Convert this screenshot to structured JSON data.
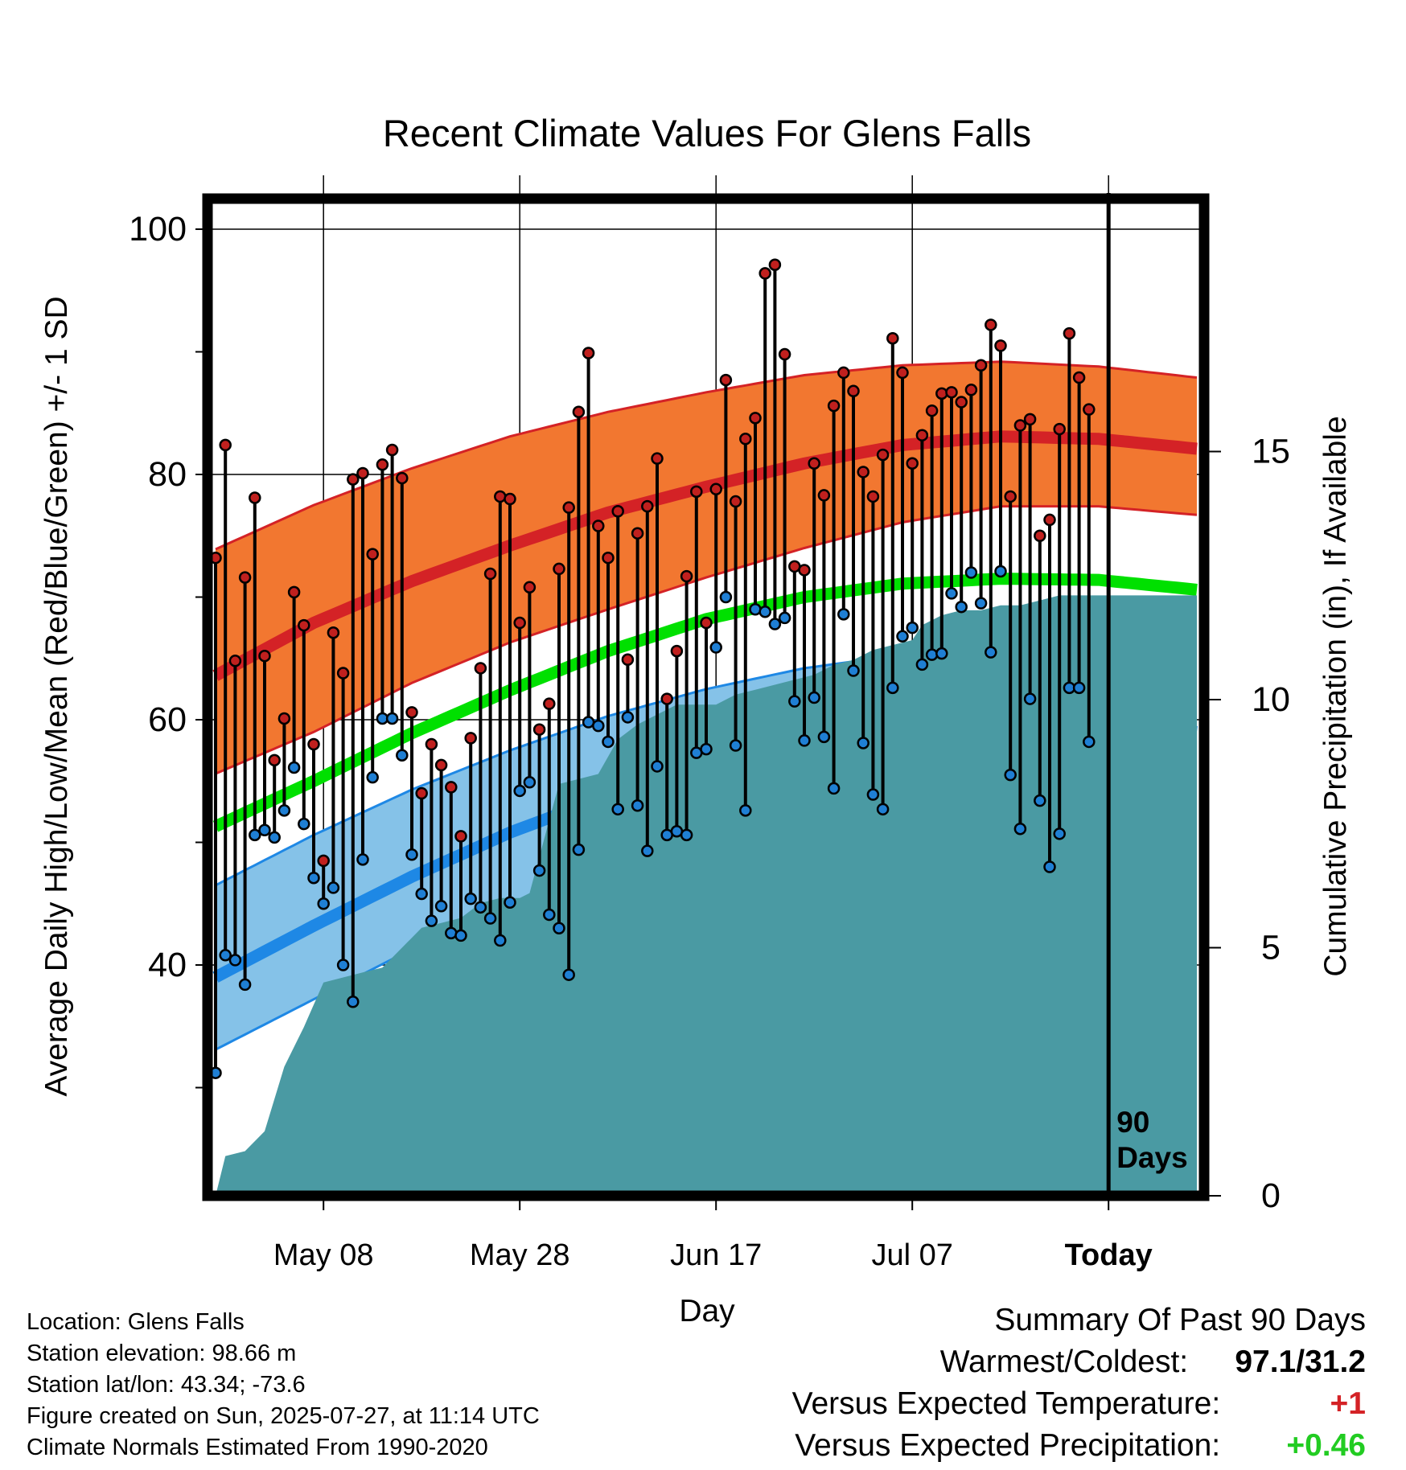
{
  "chart_data": {
    "type": "line",
    "title": "Recent Climate Values For Glens Falls",
    "xlabel": "Day",
    "ylabel": "Average Daily High/Low/Mean (Red/Blue/Green) +/- 1 SD",
    "y2label": "Cumulative Precipitation (in), If Available",
    "x_tick_labels": [
      "May 08",
      "May 28",
      "Jun 17",
      "Jul 07",
      "Today"
    ],
    "x_tick_days": [
      11,
      31,
      51,
      71,
      91
    ],
    "x_range_days": [
      0,
      100
    ],
    "ylim": [
      20,
      102
    ],
    "y_ticks": [
      40,
      60,
      80,
      100
    ],
    "y_minor_ticks": [
      30,
      50,
      70,
      90
    ],
    "y2lim": [
      0,
      19.4
    ],
    "y2_ticks": [
      0,
      5,
      10,
      15
    ],
    "today_marker_label": [
      "90",
      "Days"
    ],
    "grid": true,
    "colors": {
      "high_band": "#f27730",
      "high_mean": "#d42226",
      "low_band": "#85c2e8",
      "low_mean": "#1e88e5",
      "mean": "#00e000",
      "precip": "#4a9aa3",
      "high_dot": "#c0201e",
      "low_dot": "#1f7fd4"
    },
    "normal_days": [
      0,
      10,
      20,
      30,
      40,
      50,
      60,
      70,
      80,
      90,
      100
    ],
    "normal_high_mean": [
      63.6,
      67.9,
      71.3,
      74.2,
      76.9,
      79.0,
      80.9,
      82.4,
      83.1,
      82.9,
      82.1
    ],
    "normal_high_upper": [
      73.9,
      77.5,
      80.5,
      83.1,
      85.1,
      86.7,
      88.1,
      88.9,
      89.2,
      88.8,
      87.9
    ],
    "normal_high_lower": [
      55.6,
      59.0,
      63.0,
      66.3,
      69.0,
      71.6,
      74.0,
      76.1,
      77.4,
      77.4,
      76.7
    ],
    "normal_mean": [
      51.3,
      55.0,
      58.9,
      62.4,
      65.6,
      68.2,
      70.0,
      71.1,
      71.5,
      71.4,
      70.6
    ],
    "normal_low_mean": [
      39.0,
      43.2,
      47.2,
      50.8,
      53.8,
      56.4,
      58.3,
      59.6,
      60.0,
      59.8,
      59.0
    ],
    "normal_low_upper": [
      46.5,
      50.6,
      54.3,
      57.5,
      60.3,
      62.5,
      64.2,
      65.3,
      65.8,
      65.7,
      65.2
    ],
    "normal_low_lower": [
      33.1,
      37.2,
      41.3,
      44.9,
      47.9,
      50.5,
      52.5,
      53.8,
      54.5,
      54.4,
      53.7
    ],
    "observed_days": [
      0,
      1,
      2,
      3,
      4,
      5,
      6,
      7,
      8,
      9,
      10,
      11,
      12,
      13,
      14,
      15,
      16,
      17,
      18,
      19,
      20,
      21,
      22,
      23,
      24,
      25,
      26,
      27,
      28,
      29,
      30,
      31,
      32,
      33,
      34,
      35,
      36,
      37,
      38,
      39,
      40,
      41,
      42,
      43,
      44,
      45,
      46,
      47,
      48,
      49,
      50,
      51,
      52,
      53,
      54,
      55,
      56,
      57,
      58,
      59,
      60,
      61,
      62,
      63,
      64,
      65,
      66,
      67,
      68,
      69,
      70,
      71,
      72,
      73,
      74,
      75,
      76,
      77,
      78,
      79,
      80,
      81,
      82,
      83,
      84,
      85,
      86,
      87,
      88,
      89
    ],
    "daily_high": [
      73.2,
      82.4,
      64.8,
      71.6,
      78.1,
      65.2,
      56.7,
      60.1,
      70.4,
      67.7,
      58.0,
      48.5,
      67.1,
      63.8,
      79.6,
      80.1,
      73.5,
      80.8,
      82.0,
      79.7,
      60.6,
      54.0,
      58.0,
      56.3,
      54.5,
      50.5,
      58.5,
      64.2,
      71.9,
      78.2,
      78.0,
      67.9,
      70.8,
      59.2,
      61.3,
      72.3,
      77.3,
      85.1,
      89.9,
      75.8,
      73.2,
      77.0,
      64.9,
      75.2,
      77.4,
      81.3,
      61.7,
      65.6,
      71.7,
      78.6,
      67.9,
      78.8,
      87.7,
      77.8,
      82.9,
      84.6,
      96.4,
      97.1,
      89.8,
      72.5,
      72.2,
      80.9,
      78.3,
      85.6,
      88.3,
      86.8,
      80.2,
      78.2,
      81.6,
      91.1,
      88.3,
      80.9,
      83.2,
      85.2,
      86.6,
      86.7,
      85.9,
      86.9,
      88.9,
      92.2,
      90.5,
      78.2,
      84.0,
      84.5,
      75.0,
      76.3,
      83.7,
      91.5,
      87.9,
      85.3
    ],
    "daily_low": [
      31.2,
      40.8,
      40.4,
      38.4,
      50.6,
      51.0,
      50.4,
      52.6,
      56.1,
      51.5,
      47.1,
      45.0,
      46.3,
      40.0,
      37.0,
      48.6,
      55.3,
      60.1,
      60.1,
      57.1,
      49.0,
      45.8,
      43.6,
      44.8,
      42.6,
      42.4,
      45.4,
      44.7,
      43.8,
      42.0,
      45.1,
      54.2,
      54.9,
      47.7,
      44.1,
      43.0,
      39.2,
      49.4,
      59.8,
      59.5,
      58.2,
      52.7,
      60.2,
      53.0,
      49.3,
      56.2,
      50.6,
      50.9,
      50.6,
      57.3,
      57.6,
      65.9,
      70.0,
      57.9,
      52.6,
      69.0,
      68.8,
      67.8,
      68.3,
      61.5,
      58.3,
      61.8,
      58.6,
      54.4,
      68.6,
      64.0,
      58.1,
      53.9,
      52.7,
      62.6,
      66.8,
      67.5,
      64.5,
      65.3,
      65.4,
      70.3,
      69.2,
      72.0,
      69.5,
      65.5,
      72.1,
      55.5,
      51.1,
      61.7,
      53.4,
      48.0,
      50.7,
      62.6,
      62.6,
      58.2
    ],
    "precip_days": [
      0,
      1,
      3,
      5,
      7,
      8,
      9,
      11,
      13,
      15,
      17,
      19,
      21,
      23,
      25,
      27,
      29,
      31,
      32,
      35,
      37,
      39,
      41,
      43,
      45,
      47,
      49,
      51,
      53,
      55,
      57,
      59,
      61,
      63,
      65,
      67,
      69,
      71,
      72,
      74,
      76,
      78,
      80,
      82,
      84,
      86,
      88,
      90,
      100
    ],
    "cumulative_precip": [
      0,
      0.8,
      0.9,
      1.3,
      2.6,
      3.0,
      3.4,
      4.3,
      4.4,
      4.5,
      4.6,
      5.0,
      5.4,
      5.5,
      5.6,
      5.9,
      6.0,
      6.0,
      6.1,
      8.3,
      8.4,
      8.5,
      9.2,
      9.5,
      9.7,
      9.9,
      9.9,
      9.9,
      10.1,
      10.2,
      10.3,
      10.4,
      10.5,
      10.7,
      10.8,
      11.0,
      11.1,
      11.2,
      11.5,
      11.7,
      11.8,
      11.8,
      11.9,
      11.9,
      12.0,
      12.1,
      12.1,
      12.1,
      12.1
    ]
  },
  "footer": {
    "location": "Location: Glens Falls",
    "elevation": "Station elevation: 98.66 m",
    "latlon": "Station lat/lon: 43.34; -73.6",
    "created": "Figure created on Sun, 2025-07-27, at 11:14 UTC",
    "normals": "Climate Normals Estimated From 1990-2020"
  },
  "summary": {
    "title": "Summary Of Past 90 Days",
    "warmest_label": "Warmest/Coldest:",
    "warmest_value": "97.1/31.2",
    "temp_label": "Versus Expected Temperature:",
    "temp_value": "+1",
    "temp_color": "#d42226",
    "precip_label": "Versus Expected Precipitation:",
    "precip_value": "+0.46",
    "precip_color": "#22cc22"
  }
}
